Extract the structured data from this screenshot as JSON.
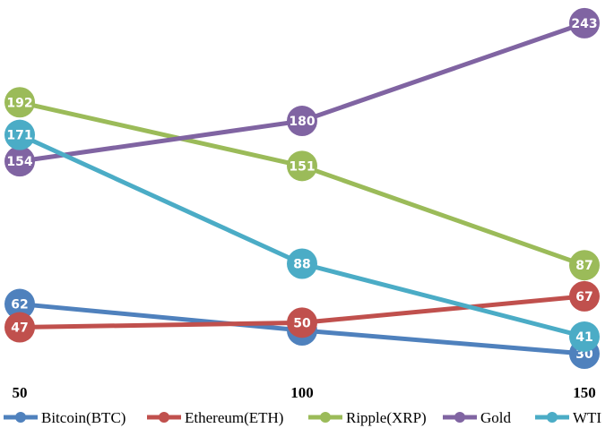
{
  "chart_data": {
    "type": "line",
    "x": [
      50,
      100,
      150
    ],
    "x_tick_labels": [
      "50",
      "100",
      "150"
    ],
    "ylim": [
      0,
      260
    ],
    "grid": false,
    "legend_position": "bottom",
    "series": [
      {
        "name": "Bitcoin(BTC)",
        "color": "#4f81bd",
        "values": [
          62,
          45,
          30
        ]
      },
      {
        "name": "Ethereum(ETH)",
        "color": "#c0504d",
        "values": [
          47,
          50,
          67
        ]
      },
      {
        "name": "Ripple(XRP)",
        "color": "#9bbb59",
        "values": [
          192,
          151,
          87
        ]
      },
      {
        "name": "Gold",
        "color": "#8064a2",
        "values": [
          154,
          180,
          243
        ]
      },
      {
        "name": "WTI",
        "color": "#4bacc6",
        "values": [
          171,
          88,
          41
        ]
      }
    ]
  }
}
